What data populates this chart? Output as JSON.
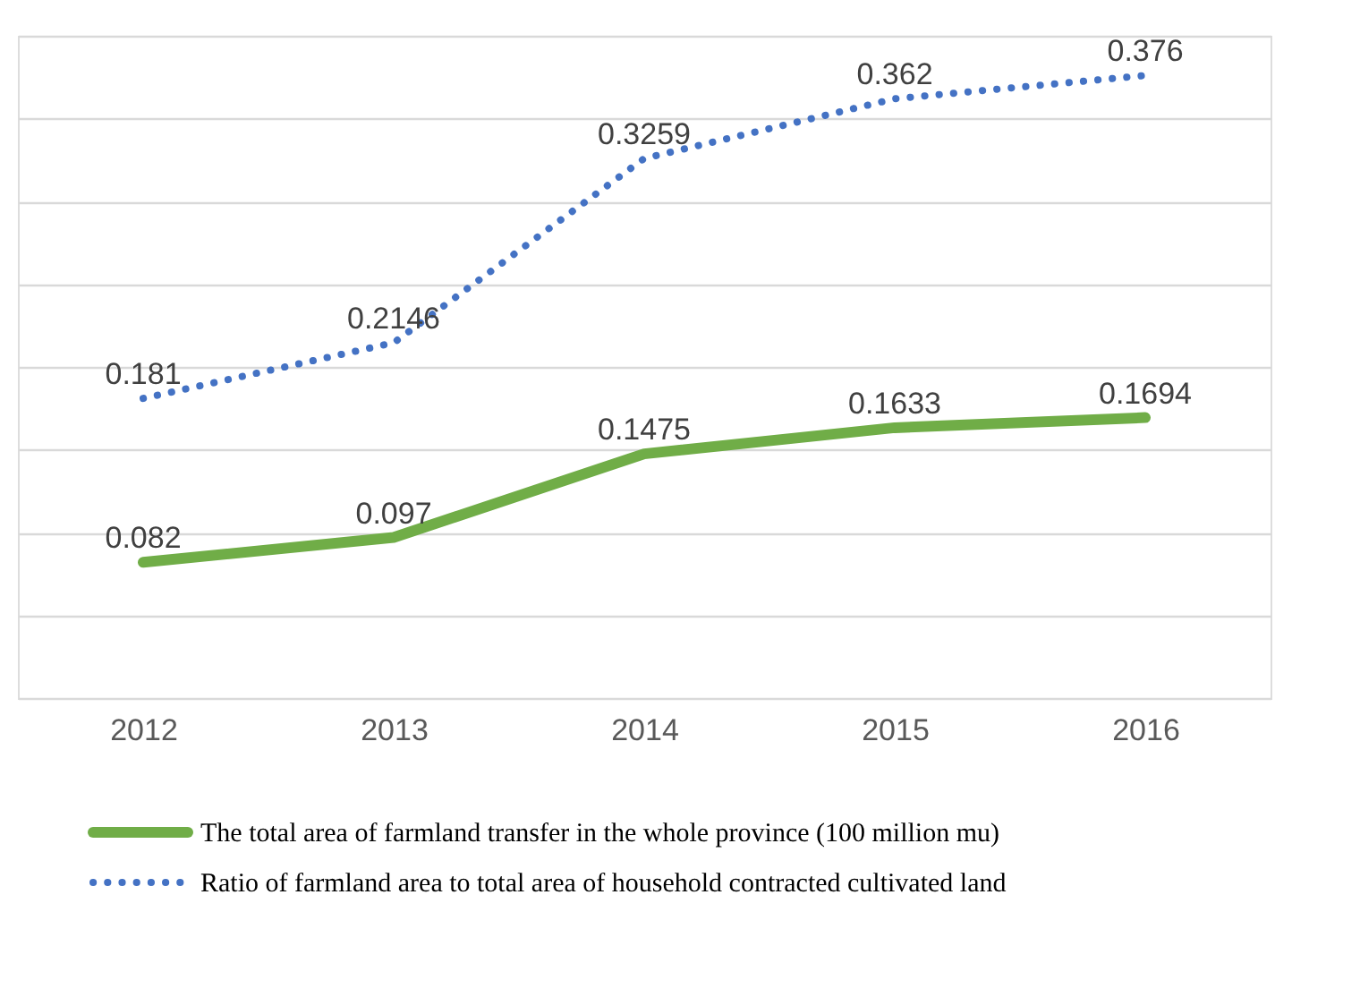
{
  "chart_data": {
    "type": "line",
    "categories": [
      "2012",
      "2013",
      "2014",
      "2015",
      "2016"
    ],
    "series": [
      {
        "name": "The total area of farmland transfer in the whole province (100 million mu)",
        "color": "#70ad47",
        "values": [
          0.082,
          0.097,
          0.1475,
          0.1633,
          0.1694
        ],
        "line_style": "solid"
      },
      {
        "name": "Ratio of farmland area to total area of household contracted cultivated land",
        "color": "#4472c4",
        "values": [
          0.181,
          0.2146,
          0.3259,
          0.362,
          0.376
        ],
        "line_style": "dotted"
      }
    ],
    "ylim": [
      0,
      0.4
    ],
    "yticks": [
      {
        "value": 0,
        "label": null
      },
      {
        "value": 0.05,
        "label": null
      },
      {
        "value": 0.1,
        "label": null
      },
      {
        "value": 0.15,
        "label": null
      },
      {
        "value": 0.2,
        "label": null
      },
      {
        "value": 0.25,
        "label": null
      },
      {
        "value": 0.3,
        "label": null
      },
      {
        "value": 0.35,
        "label": null
      },
      {
        "value": 0.4,
        "label": null
      }
    ],
    "tick_labels": "x",
    "grid": "y",
    "data_labels": true,
    "legend": "bottom",
    "marker": "none"
  }
}
